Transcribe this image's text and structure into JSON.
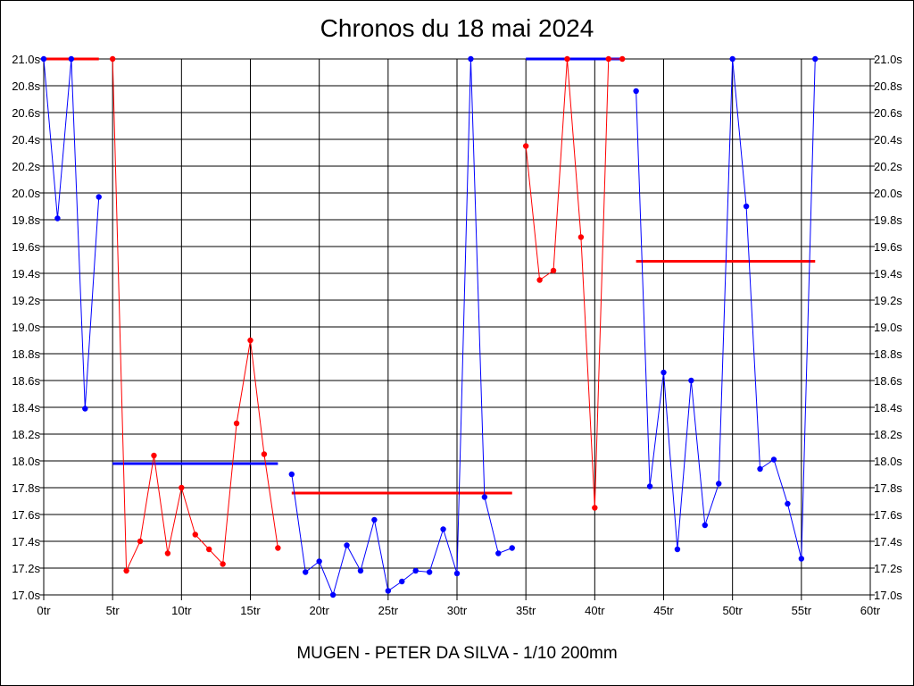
{
  "title": "Chronos du 18 mai 2024",
  "subtitle": "MUGEN - PETER DA SILVA - 1/10 200mm",
  "colors": {
    "red": "#ff0000",
    "blue": "#0000ff",
    "grid": "#000000",
    "background": "#ffffff"
  },
  "chart_data": {
    "type": "line",
    "title": "Chronos du 18 mai 2024",
    "xlabel": "",
    "ylabel": "",
    "xlim": [
      0,
      60
    ],
    "ylim": [
      17.0,
      21.0
    ],
    "grid": true,
    "x_ticks": [
      "0tr",
      "5tr",
      "10tr",
      "15tr",
      "20tr",
      "25tr",
      "30tr",
      "35tr",
      "40tr",
      "45tr",
      "50tr",
      "55tr",
      "60tr"
    ],
    "y_ticks": [
      "17.0s",
      "17.2s",
      "17.4s",
      "17.6s",
      "17.8s",
      "18.0s",
      "18.2s",
      "18.4s",
      "18.6s",
      "18.8s",
      "19.0s",
      "19.2s",
      "19.4s",
      "19.6s",
      "19.8s",
      "20.0s",
      "20.2s",
      "20.4s",
      "20.6s",
      "20.8s",
      "21.0s"
    ],
    "series": [
      {
        "color": "#0000ff",
        "x": [
          0,
          1,
          2,
          3,
          4
        ],
        "y": [
          21.0,
          19.81,
          21.0,
          18.39,
          19.97
        ],
        "average": {
          "x_start": 0,
          "x_end": 4,
          "value": 21.0,
          "color": "#ff0000"
        }
      },
      {
        "color": "#ff0000",
        "x": [
          5,
          6,
          7,
          8,
          9,
          10,
          11,
          12,
          13,
          14,
          15,
          16,
          17
        ],
        "y": [
          21.0,
          17.18,
          17.4,
          18.04,
          17.31,
          17.8,
          17.45,
          17.34,
          17.23,
          18.28,
          18.9,
          18.05,
          17.35
        ],
        "average": {
          "x_start": 5,
          "x_end": 17,
          "value": 17.98,
          "color": "#0000ff"
        }
      },
      {
        "color": "#0000ff",
        "x": [
          18,
          19,
          20,
          21,
          22,
          23,
          24,
          25,
          26,
          27,
          28,
          29,
          30,
          31,
          32,
          33,
          34
        ],
        "y": [
          17.9,
          17.17,
          17.25,
          17.0,
          17.37,
          17.18,
          17.56,
          17.03,
          17.1,
          17.18,
          17.17,
          17.49,
          17.16,
          21.0,
          17.73,
          17.31,
          17.35
        ],
        "average": {
          "x_start": 18,
          "x_end": 34,
          "value": 17.76,
          "color": "#ff0000"
        }
      },
      {
        "color": "#ff0000",
        "x": [
          35,
          36,
          37,
          38,
          39,
          40,
          41,
          42
        ],
        "y": [
          20.35,
          19.35,
          19.42,
          21.0,
          19.67,
          17.65,
          21.0,
          21.0
        ],
        "average": {
          "x_start": 35,
          "x_end": 42,
          "value": 21.0,
          "color": "#0000ff"
        }
      },
      {
        "color": "#0000ff",
        "x": [
          43,
          44,
          45,
          46,
          47,
          48,
          49,
          50,
          51,
          52,
          53,
          54,
          55,
          56
        ],
        "y": [
          20.76,
          17.81,
          18.66,
          17.34,
          18.6,
          17.52,
          17.83,
          21.0,
          19.9,
          17.94,
          18.01,
          17.68,
          17.27,
          21.0
        ],
        "average": {
          "x_start": 43,
          "x_end": 56,
          "value": 19.49,
          "color": "#ff0000"
        }
      }
    ]
  }
}
